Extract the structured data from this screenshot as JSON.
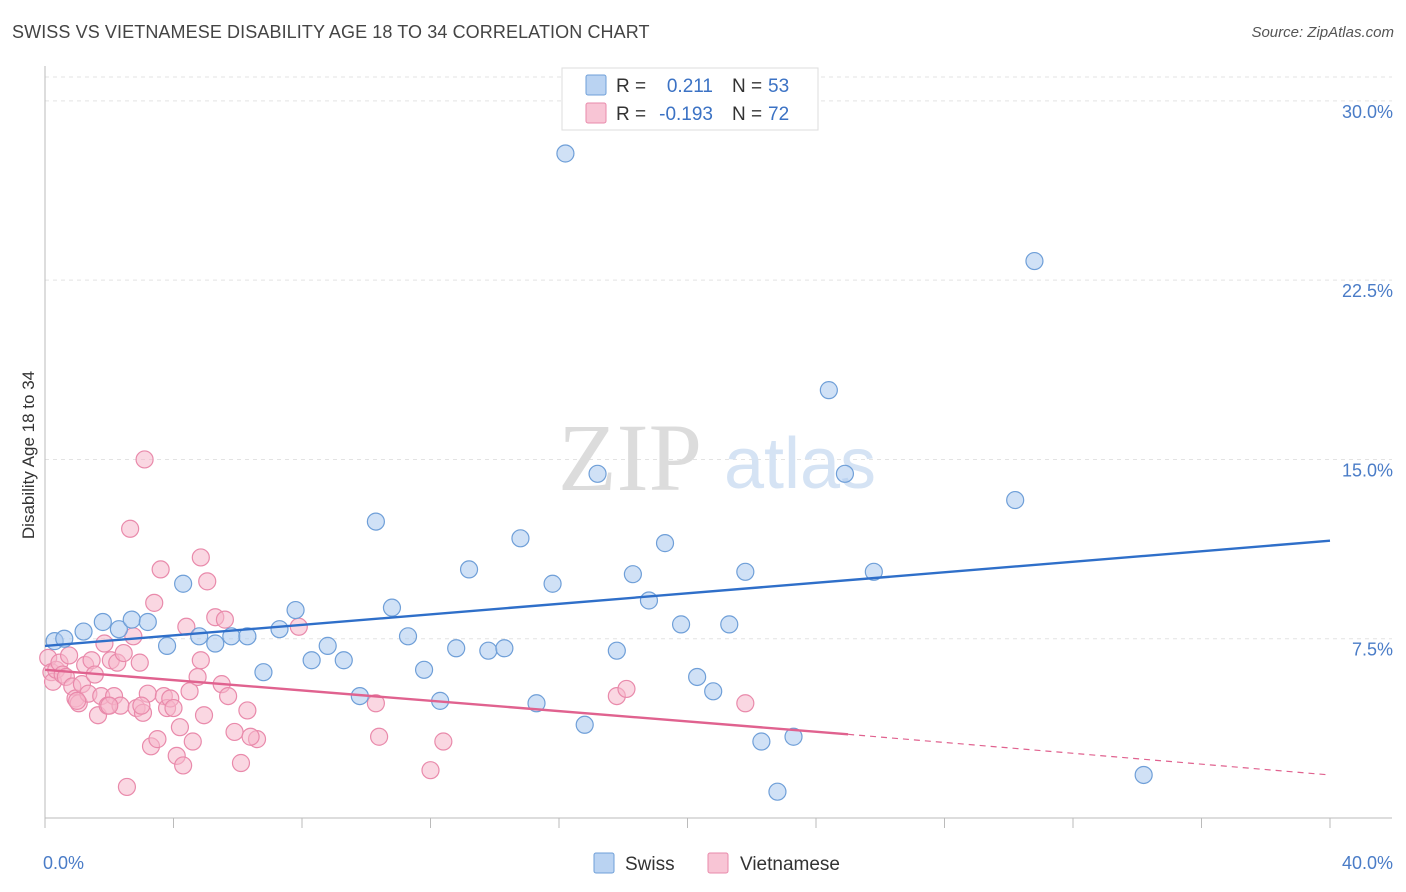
{
  "title": "SWISS VS VIETNAMESE DISABILITY AGE 18 TO 34 CORRELATION CHART",
  "source": "Source: ZipAtlas.com",
  "watermark": {
    "zip": "ZIP",
    "atlas": "atlas"
  },
  "colors": {
    "swiss_fill": "#a9c8ef",
    "swiss_stroke": "#6f9fd8",
    "swiss_line": "#2f6fc9",
    "viet_fill": "#f6b6ca",
    "viet_stroke": "#e98aab",
    "viet_line": "#e0628f",
    "grid": "#e3e3e3",
    "tick_text": "#4a7cc7"
  },
  "legend": {
    "rows": [
      {
        "r_label": "R =",
        "r_value": "0.211",
        "n_label": "N =",
        "n_value": "53"
      },
      {
        "r_label": "R =",
        "r_value": "-0.193",
        "n_label": "N =",
        "n_value": "72"
      }
    ]
  },
  "chart_data": {
    "type": "scatter",
    "title": "SWISS VS VIETNAMESE DISABILITY AGE 18 TO 34 CORRELATION CHART",
    "xlabel": "",
    "ylabel": "Disability Age 18 to 34",
    "xlim": [
      0,
      40
    ],
    "ylim": [
      0,
      31
    ],
    "x_tick_labels": [
      {
        "value": 0,
        "label": "0.0%"
      },
      {
        "value": 40,
        "label": "40.0%"
      }
    ],
    "y_tick_labels": [
      {
        "value": 7.5,
        "label": "7.5%"
      },
      {
        "value": 15,
        "label": "15.0%"
      },
      {
        "value": 22.5,
        "label": "22.5%"
      },
      {
        "value": 30,
        "label": "30.0%"
      }
    ],
    "grid": true,
    "legend_position": "top-center",
    "series": [
      {
        "name": "Swiss",
        "points": [
          [
            0.3,
            7.4
          ],
          [
            0.6,
            7.5
          ],
          [
            1.2,
            7.8
          ],
          [
            1.8,
            8.2
          ],
          [
            2.3,
            7.9
          ],
          [
            2.7,
            8.3
          ],
          [
            3.2,
            8.2
          ],
          [
            3.8,
            7.2
          ],
          [
            4.3,
            9.8
          ],
          [
            4.8,
            7.6
          ],
          [
            5.3,
            7.3
          ],
          [
            5.8,
            7.6
          ],
          [
            6.3,
            7.6
          ],
          [
            6.8,
            6.1
          ],
          [
            7.3,
            7.9
          ],
          [
            7.8,
            8.7
          ],
          [
            8.3,
            6.6
          ],
          [
            8.8,
            7.2
          ],
          [
            9.3,
            6.6
          ],
          [
            9.8,
            5.1
          ],
          [
            10.3,
            12.4
          ],
          [
            10.8,
            8.8
          ],
          [
            11.3,
            7.6
          ],
          [
            11.8,
            6.2
          ],
          [
            12.3,
            4.9
          ],
          [
            12.8,
            7.1
          ],
          [
            13.2,
            10.4
          ],
          [
            13.8,
            7.0
          ],
          [
            14.3,
            7.1
          ],
          [
            14.8,
            11.7
          ],
          [
            15.3,
            4.8
          ],
          [
            15.8,
            9.8
          ],
          [
            16.2,
            27.8
          ],
          [
            16.8,
            3.9
          ],
          [
            17.2,
            14.4
          ],
          [
            17.8,
            7.0
          ],
          [
            18.3,
            10.2
          ],
          [
            18.8,
            9.1
          ],
          [
            19.3,
            11.5
          ],
          [
            19.8,
            8.1
          ],
          [
            20.3,
            5.9
          ],
          [
            20.8,
            5.3
          ],
          [
            21.3,
            8.1
          ],
          [
            21.8,
            10.3
          ],
          [
            22.3,
            3.2
          ],
          [
            22.8,
            1.1
          ],
          [
            23.3,
            3.4
          ],
          [
            24.4,
            17.9
          ],
          [
            24.9,
            14.4
          ],
          [
            25.8,
            10.3
          ],
          [
            30.2,
            13.3
          ],
          [
            30.8,
            23.3
          ],
          [
            34.2,
            1.8
          ]
        ]
      },
      {
        "name": "Vietnamese",
        "points": [
          [
            0.1,
            6.7
          ],
          [
            0.2,
            6.1
          ],
          [
            0.25,
            5.7
          ],
          [
            0.35,
            6.2
          ],
          [
            0.45,
            6.5
          ],
          [
            0.55,
            6.0
          ],
          [
            0.65,
            5.9
          ],
          [
            0.75,
            6.8
          ],
          [
            0.85,
            5.5
          ],
          [
            0.95,
            5.0
          ],
          [
            1.05,
            4.8
          ],
          [
            1.15,
            5.6
          ],
          [
            1.25,
            6.4
          ],
          [
            1.35,
            5.2
          ],
          [
            1.45,
            6.6
          ],
          [
            1.55,
            6.0
          ],
          [
            1.65,
            4.3
          ],
          [
            1.75,
            5.1
          ],
          [
            1.85,
            7.3
          ],
          [
            1.95,
            4.7
          ],
          [
            2.05,
            6.6
          ],
          [
            2.15,
            5.1
          ],
          [
            2.25,
            6.5
          ],
          [
            2.35,
            4.7
          ],
          [
            2.45,
            6.9
          ],
          [
            2.55,
            1.3
          ],
          [
            2.65,
            12.1
          ],
          [
            2.75,
            7.6
          ],
          [
            2.85,
            4.6
          ],
          [
            2.95,
            6.5
          ],
          [
            3.05,
            4.4
          ],
          [
            3.1,
            15.0
          ],
          [
            3.2,
            5.2
          ],
          [
            3.3,
            3.0
          ],
          [
            3.4,
            9.0
          ],
          [
            3.5,
            3.3
          ],
          [
            3.6,
            10.4
          ],
          [
            3.7,
            5.1
          ],
          [
            3.8,
            4.6
          ],
          [
            3.9,
            5.0
          ],
          [
            4.0,
            4.6
          ],
          [
            4.1,
            2.6
          ],
          [
            4.2,
            3.8
          ],
          [
            4.3,
            2.2
          ],
          [
            4.4,
            8.0
          ],
          [
            4.5,
            5.3
          ],
          [
            4.6,
            3.2
          ],
          [
            4.75,
            5.9
          ],
          [
            4.85,
            10.9
          ],
          [
            4.95,
            4.3
          ],
          [
            5.05,
            9.9
          ],
          [
            5.3,
            8.4
          ],
          [
            5.5,
            5.6
          ],
          [
            5.7,
            5.1
          ],
          [
            5.9,
            3.6
          ],
          [
            6.1,
            2.3
          ],
          [
            6.3,
            4.5
          ],
          [
            6.6,
            3.3
          ],
          [
            7.9,
            8.0
          ],
          [
            10.3,
            4.8
          ],
          [
            10.4,
            3.4
          ],
          [
            12.0,
            2.0
          ],
          [
            12.4,
            3.2
          ],
          [
            17.8,
            5.1
          ],
          [
            18.1,
            5.4
          ],
          [
            21.8,
            4.8
          ],
          [
            6.4,
            3.4
          ],
          [
            1.0,
            4.9
          ],
          [
            2.0,
            4.7
          ],
          [
            3.0,
            4.7
          ],
          [
            5.6,
            8.3
          ],
          [
            4.85,
            6.6
          ]
        ]
      }
    ],
    "trendlines": [
      {
        "name": "Swiss",
        "x": [
          0,
          40
        ],
        "y": [
          7.2,
          11.6
        ],
        "style": "solid"
      },
      {
        "name": "Vietnamese",
        "x": [
          0,
          25
        ],
        "y": [
          6.2,
          3.5
        ],
        "style": "solid"
      },
      {
        "name": "Vietnamese",
        "x": [
          25,
          40
        ],
        "y": [
          3.5,
          1.8
        ],
        "style": "dashed"
      }
    ]
  },
  "bottom_legend": [
    {
      "label": "Swiss"
    },
    {
      "label": "Vietnamese"
    }
  ]
}
